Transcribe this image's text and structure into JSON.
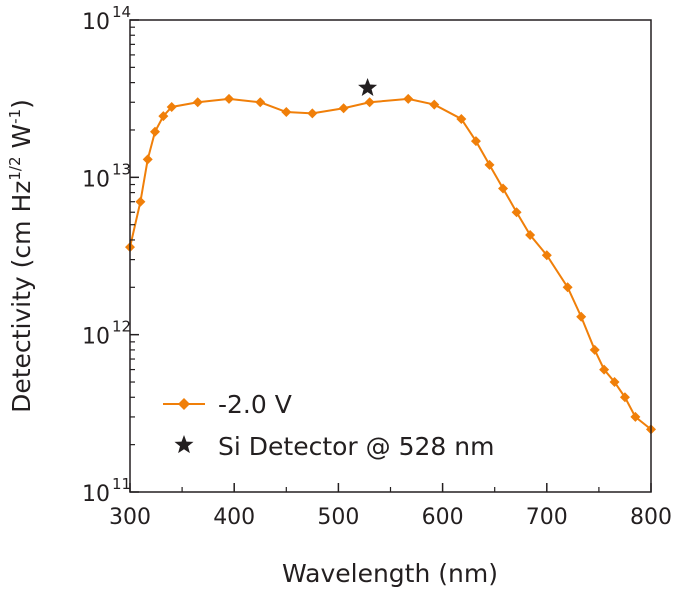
{
  "chart_data": {
    "type": "line",
    "title": "",
    "xlabel": "Wavelength (nm)",
    "ylabel_parts": {
      "prefix": "Detectivity (cm Hz",
      "exp_half": "1/2",
      "middle": " W",
      "exp_neg": "-1",
      "suffix": ")"
    },
    "xlim": [
      300,
      800
    ],
    "yscale": "log",
    "ylim": [
      100000000000.0,
      100000000000000.0
    ],
    "x_ticks": [
      "300",
      "400",
      "500",
      "600",
      "700",
      "800"
    ],
    "y_ticks": [
      {
        "base": "10",
        "exp": "11"
      },
      {
        "base": "10",
        "exp": "12"
      },
      {
        "base": "10",
        "exp": "13"
      },
      {
        "base": "10",
        "exp": "14"
      }
    ],
    "series": [
      {
        "name": "-2.0 V",
        "color": "#f07f09",
        "marker": "diamond",
        "x": [
          300,
          310,
          317,
          324,
          332,
          340,
          365,
          395,
          425,
          450,
          475,
          505,
          530,
          567,
          592,
          618,
          632,
          645,
          658,
          671,
          684,
          700,
          720,
          733,
          746,
          755,
          765,
          775,
          785,
          800
        ],
        "y": [
          3600000000000.0,
          7000000000000.0,
          13000000000000.0,
          19500000000000.0,
          24500000000000.0,
          28000000000000.0,
          30000000000000.0,
          31500000000000.0,
          30000000000000.0,
          26000000000000.0,
          25500000000000.0,
          27500000000000.0,
          30000000000000.0,
          31500000000000.0,
          29000000000000.0,
          23500000000000.0,
          17000000000000.0,
          12000000000000.0,
          8500000000000.0,
          6000000000000.0,
          4300000000000.0,
          3200000000000.0,
          2000000000000.0,
          1300000000000.0,
          800000000000.0,
          600000000000.0,
          500000000000.0,
          400000000000.0,
          300000000000.0,
          250000000000.0
        ]
      }
    ],
    "reference_points": [
      {
        "name": "Si Detector @ 528 nm",
        "x": 528,
        "y": 37000000000000.0,
        "marker": "star",
        "color": "#231f20"
      }
    ],
    "legend_position": "lower-left"
  }
}
